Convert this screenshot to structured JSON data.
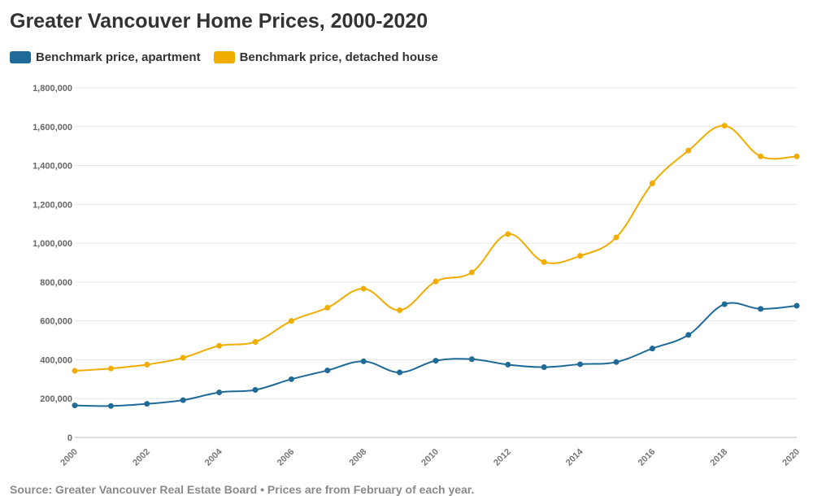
{
  "chart_data": {
    "type": "line",
    "title": "Greater Vancouver Home Prices, 2000-2020",
    "x": [
      2000,
      2001,
      2002,
      2003,
      2004,
      2005,
      2006,
      2007,
      2008,
      2009,
      2010,
      2011,
      2012,
      2013,
      2014,
      2015,
      2016,
      2017,
      2018,
      2019,
      2020
    ],
    "x_tick_labels": [
      "2000",
      "2002",
      "2004",
      "2006",
      "2008",
      "2010",
      "2012",
      "2014",
      "2016",
      "2018",
      "2020"
    ],
    "y_tick_labels": [
      "0",
      "200,000",
      "400,000",
      "600,000",
      "800,000",
      "1,000,000",
      "1,200,000",
      "1,400,000",
      "1,600,000",
      "1,800,000"
    ],
    "ylim": [
      0,
      1800000
    ],
    "grid": true,
    "legend_position": "top-left",
    "series": [
      {
        "name": "Benchmark price, apartment",
        "color": "#1f6a96",
        "values": [
          165000,
          162000,
          173000,
          192000,
          232000,
          245000,
          300000,
          345000,
          392000,
          335000,
          395000,
          403000,
          375000,
          362000,
          377000,
          388000,
          458000,
          528000,
          686000,
          662000,
          678000
        ]
      },
      {
        "name": "Benchmark price, detached house",
        "color": "#f0ad00",
        "values": [
          343000,
          355000,
          375000,
          410000,
          472000,
          492000,
          600000,
          668000,
          766000,
          655000,
          803000,
          850000,
          1047000,
          903000,
          935000,
          1030000,
          1308000,
          1477000,
          1605000,
          1447000,
          1447000
        ]
      }
    ],
    "source": "Source: Greater Vancouver Real Estate Board • Prices are from February of each year."
  }
}
